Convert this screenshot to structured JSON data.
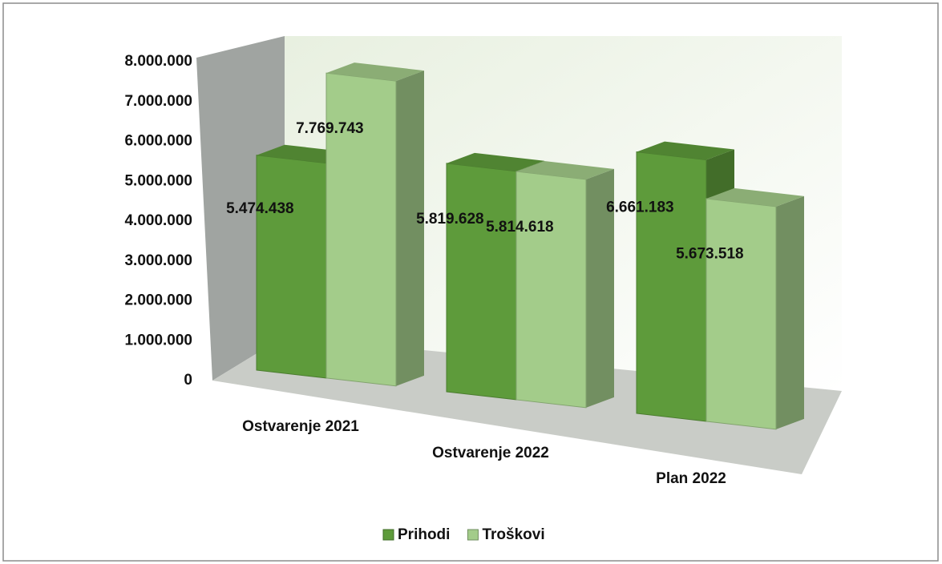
{
  "chart_data": {
    "type": "bar3d",
    "categories": [
      "Ostvarenje 2021",
      "Ostvarenje 2022",
      "Plan 2022"
    ],
    "series": [
      {
        "name": "Prihodi",
        "color": "#5e9b3b",
        "values": [
          5474438,
          5819628,
          6661183
        ],
        "value_labels": [
          "5.474.438",
          "5.819.628",
          "6.661.183"
        ]
      },
      {
        "name": "Troškovi",
        "color": "#a3cc8a",
        "values": [
          7769743,
          5814618,
          5673518
        ],
        "value_labels": [
          "7.769.743",
          "5.814.618",
          "5.673.518"
        ]
      }
    ],
    "ylim": [
      0,
      8000000
    ],
    "yticks": [
      0,
      {
        "value": 1000000,
        "label": "1.000.000"
      },
      {
        "value": 2000000,
        "label": "2.000.000"
      },
      {
        "value": 3000000,
        "label": "3.000.000"
      },
      {
        "value": 4000000,
        "label": "4.000.000"
      },
      {
        "value": 5000000,
        "label": "5.000.000"
      },
      {
        "value": 6000000,
        "label": "6.000.000"
      },
      {
        "value": 7000000,
        "label": "7.000.000"
      },
      {
        "value": 8000000,
        "label": "8.000.000"
      }
    ],
    "legend": "bottom"
  }
}
